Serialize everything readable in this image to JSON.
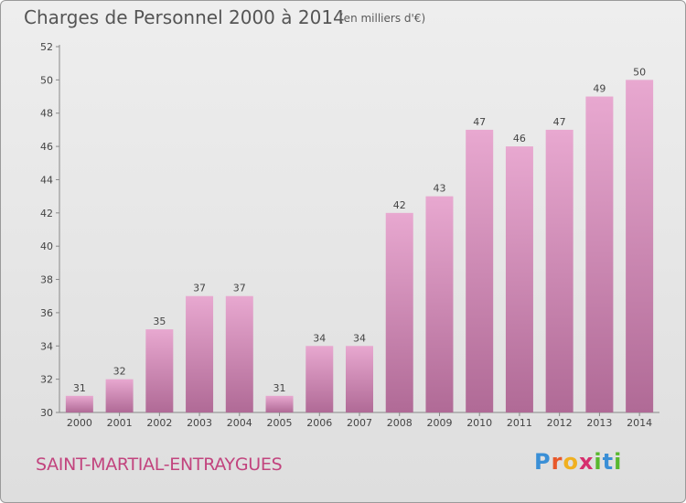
{
  "chart_data": {
    "type": "bar",
    "title": "Charges de Personnel 2000 à 2014",
    "subtitle": "(en milliers d'€)",
    "categories": [
      "2000",
      "2001",
      "2002",
      "2003",
      "2004",
      "2005",
      "2006",
      "2007",
      "2008",
      "2009",
      "2010",
      "2011",
      "2012",
      "2013",
      "2014"
    ],
    "values": [
      31,
      32,
      35,
      37,
      37,
      31,
      34,
      34,
      42,
      43,
      47,
      46,
      47,
      49,
      50
    ],
    "ylim": [
      30,
      52
    ],
    "yticks": [
      "30",
      "32",
      "34",
      "36",
      "38",
      "40",
      "42",
      "44",
      "46",
      "48",
      "50",
      "52"
    ],
    "grid": false,
    "bar_color_top": "#e8a8d0",
    "bar_color_bottom": "#b06a96"
  },
  "footer": {
    "commune": "SAINT-MARTIAL-ENTRAYGUES",
    "logo": [
      "P",
      "r",
      "o",
      "x",
      "i",
      "t",
      "i"
    ],
    "logo_colors": [
      "#3a8fd6",
      "#e8582a",
      "#f0b020",
      "#d62f6e",
      "#58b82e",
      "#3a8fd6",
      "#58b82e"
    ]
  }
}
